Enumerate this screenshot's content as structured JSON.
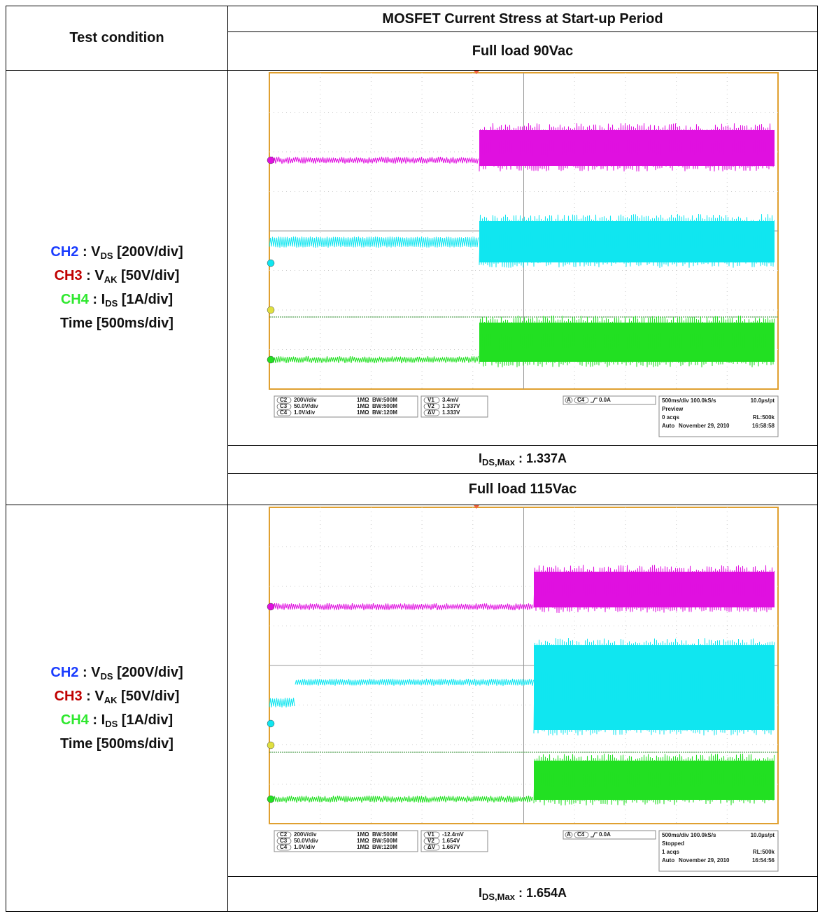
{
  "table": {
    "header": {
      "condition": "Test condition",
      "title": "MOSFET Current Stress at Start-up Period"
    },
    "sections": [
      {
        "load": "Full load 90Vac",
        "conditions": [
          {
            "ch": "CH2",
            "sep": " : ",
            "sym": "V",
            "sub": "DS",
            "rest": " [200V/div]"
          },
          {
            "ch": "CH3",
            "sep": " : ",
            "sym": "V",
            "sub": "AK",
            "rest": " [50V/div]"
          },
          {
            "ch": "CH4",
            "sep": " : ",
            "sym": "I",
            "sub": "DS",
            "rest": " [1A/div]"
          }
        ],
        "time": "Time [500ms/div]",
        "result": {
          "sym": "I",
          "sub": "DS,Max",
          "rest": " : 1.337A"
        },
        "scope": {
          "channels": [
            {
              "id": "C2",
              "scale": "200V/div",
              "input": "1MΩ",
              "bw": "BW:500M"
            },
            {
              "id": "C3",
              "scale": "50.0V/div",
              "input": "1MΩ",
              "bw": "BW:500M"
            },
            {
              "id": "C4",
              "scale": "1.0V/div",
              "input": "1MΩ",
              "bw": "BW:120M"
            }
          ],
          "cursors": [
            {
              "id": "V1",
              "value": "3.4mV"
            },
            {
              "id": "V2",
              "value": "1.337V"
            },
            {
              "id": "ΔV",
              "value": "1.333V"
            }
          ],
          "trigger": {
            "mode": "A",
            "source": "C4",
            "level": "0.0A"
          },
          "timebase": {
            "scale": "500ms/div 100.0kS/s",
            "rate": "10.0µs/pt",
            "state": "Preview",
            "acqs": "0 acqs",
            "rl": "RL:500k",
            "mode": "Auto",
            "date": "November 29, 2010",
            "time": "16:58:58"
          }
        }
      },
      {
        "load": "Full load 115Vac",
        "conditions": [
          {
            "ch": "CH2",
            "sep": " : ",
            "sym": "V",
            "sub": "DS",
            "rest": " [200V/div]"
          },
          {
            "ch": "CH3",
            "sep": " : ",
            "sym": "V",
            "sub": "AK",
            "rest": " [50V/div]"
          },
          {
            "ch": "CH4",
            "sep": " : ",
            "sym": "I",
            "sub": "DS",
            "rest": " [1A/div]"
          }
        ],
        "time": "Time [500ms/div]",
        "result": {
          "sym": "I",
          "sub": "DS,Max",
          "rest": " : 1.654A"
        },
        "scope": {
          "channels": [
            {
              "id": "C2",
              "scale": "200V/div",
              "input": "1MΩ",
              "bw": "BW:500M"
            },
            {
              "id": "C3",
              "scale": "50.0V/div",
              "input": "1MΩ",
              "bw": "BW:500M"
            },
            {
              "id": "C4",
              "scale": "1.0V/div",
              "input": "1MΩ",
              "bw": "BW:120M"
            }
          ],
          "cursors": [
            {
              "id": "V1",
              "value": "-12.4mV"
            },
            {
              "id": "V2",
              "value": "1.654V"
            },
            {
              "id": "ΔV",
              "value": "1.667V"
            }
          ],
          "trigger": {
            "mode": "A",
            "source": "C4",
            "level": "0.0A"
          },
          "timebase": {
            "scale": "500ms/div 100.0kS/s",
            "rate": "10.0µs/pt",
            "state": "Stopped",
            "acqs": "1 acqs",
            "rl": "RL:500k",
            "mode": "Auto",
            "date": "November 29, 2010",
            "time": "16:54:56"
          }
        }
      }
    ]
  }
}
